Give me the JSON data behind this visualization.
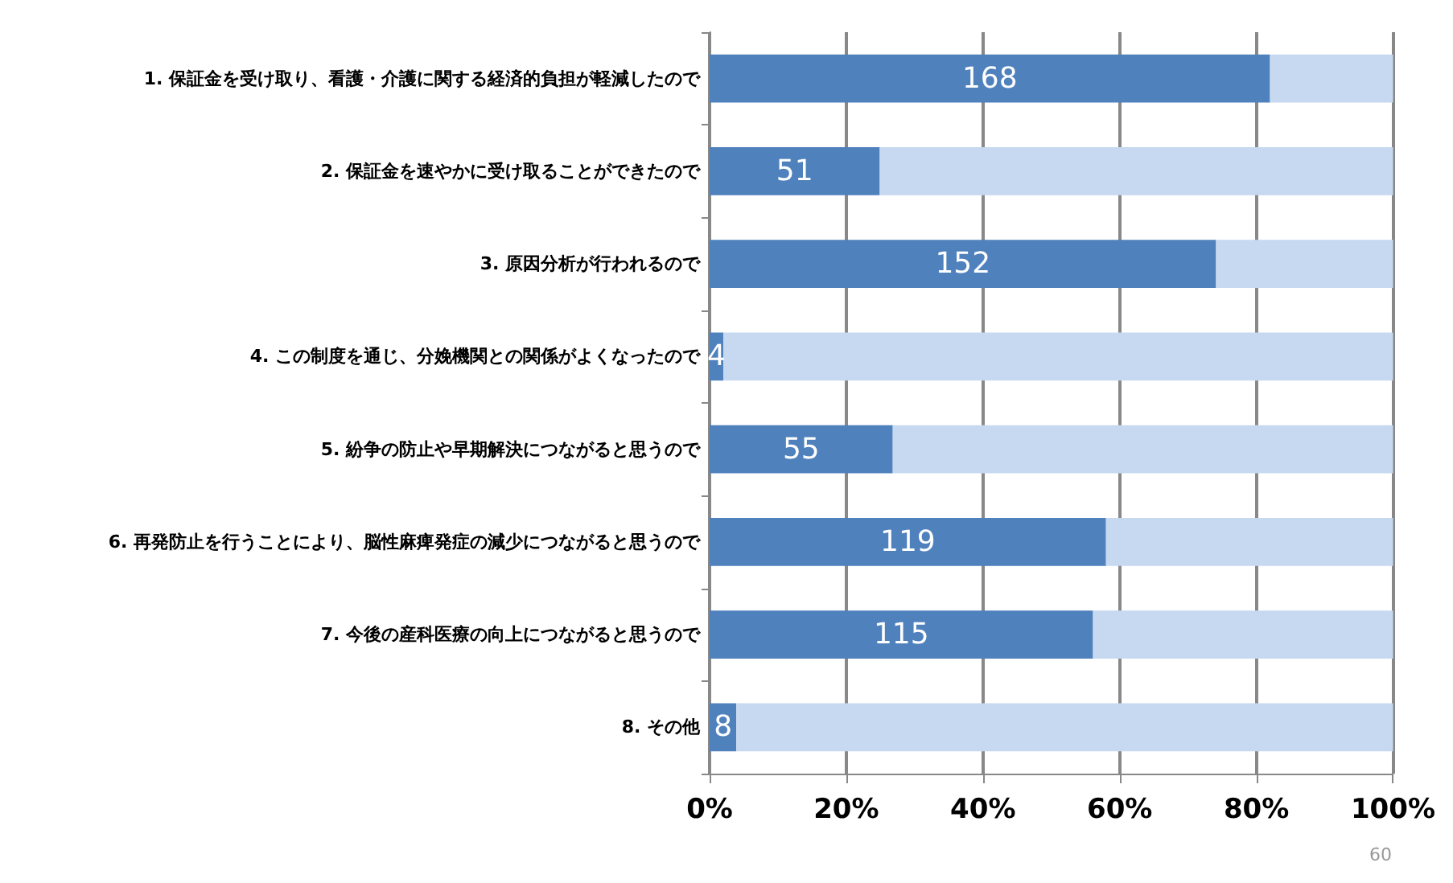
{
  "chart_data": {
    "type": "bar",
    "orientation": "horizontal",
    "stacked": true,
    "categories": [
      "1. 保証金を受け取り、看護・介護に関する経済的負担が軽減したので",
      "2. 保証金を速やかに受け取ることができたので",
      "3. 原因分析が行われるので",
      "4. この制度を通じ、分娩機関との関係がよくなったので",
      "5. 紛争の防止や早期解決につながると思うので",
      "6. 再発防止を行うことにより、脳性麻痺発症の減少につながると思うので",
      "7. 今後の産科医療の向上につながると思うので",
      "8. その他"
    ],
    "series": [
      {
        "color": "#4f81bd",
        "values": [
          82.0,
          24.9,
          74.1,
          2.0,
          26.8,
          58.0,
          56.1,
          3.9
        ]
      },
      {
        "color": "#c6d9f1",
        "values": [
          18.0,
          75.1,
          25.9,
          98.0,
          73.2,
          42.0,
          43.9,
          96.1
        ]
      }
    ],
    "xlim": [
      0,
      100
    ],
    "xticks": [
      {
        "value": 0,
        "label": "0%"
      },
      {
        "value": 20,
        "label": "20%"
      },
      {
        "value": 40,
        "label": "40%"
      },
      {
        "value": 60,
        "label": "60%"
      },
      {
        "value": 80,
        "label": "80%"
      },
      {
        "value": 100,
        "label": "100%"
      }
    ],
    "grid": "x",
    "annotations": [
      "168",
      "51",
      "152",
      "4",
      "55",
      "119",
      "115",
      "8",
      "60"
    ]
  }
}
